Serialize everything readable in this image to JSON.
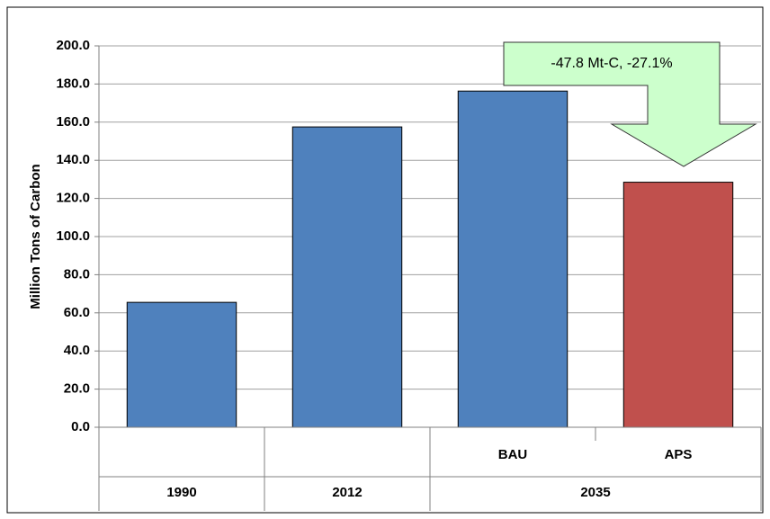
{
  "chart_data": {
    "type": "bar",
    "y_label": "Million Tons of Carbon",
    "annotation": "-47.8 Mt-C, -27.1%",
    "categories": [
      null,
      null,
      "BAU",
      "APS"
    ],
    "x_groups": [
      {
        "label": "1990",
        "size": 1
      },
      {
        "label": "2012",
        "size": 1
      },
      {
        "label": "2035",
        "size": 2
      }
    ],
    "values": [
      65.5,
      157.5,
      176.3,
      128.5
    ],
    "colors": [
      "#4f81bd",
      "#4f81bd",
      "#4f81bd",
      "#c0504d"
    ],
    "ylim": [
      0,
      200
    ],
    "yticks": [
      {
        "value": 0,
        "label": "0.0"
      },
      {
        "value": 20,
        "label": "20.0"
      },
      {
        "value": 40,
        "label": "40.0"
      },
      {
        "value": 60,
        "label": "60.0"
      },
      {
        "value": 80,
        "label": "80.0"
      },
      {
        "value": 100,
        "label": "100.0"
      },
      {
        "value": 120,
        "label": "120.0"
      },
      {
        "value": 140,
        "label": "140.0"
      },
      {
        "value": 160,
        "label": "160.0"
      },
      {
        "value": 180,
        "label": "180.0"
      },
      {
        "value": 200,
        "label": "200.0"
      }
    ],
    "grid": true
  }
}
